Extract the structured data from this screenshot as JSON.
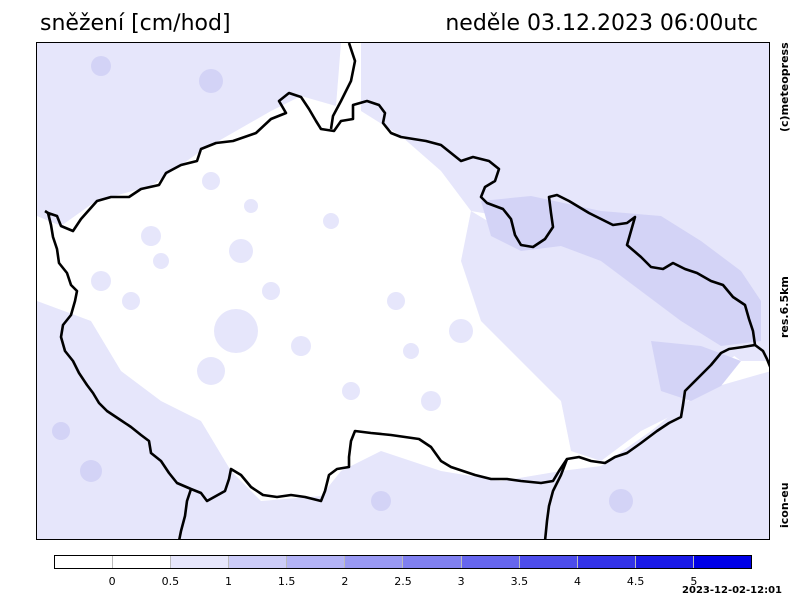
{
  "header": {
    "parameter": "sněžení [cm/hod]",
    "datetime": "neděle 03.12.2023 06:00utc"
  },
  "side_labels": {
    "copyright": "(c)meteopress",
    "resolution": "res.6.5km",
    "model": "icon-eu"
  },
  "legend": {
    "ticks": [
      "0",
      "0.5",
      "1",
      "1.5",
      "2",
      "2.5",
      "3",
      "3.5",
      "4",
      "4.5",
      "5"
    ],
    "colors": [
      "#ffffff",
      "#e6e6fb",
      "#ccccf8",
      "#b3b3f6",
      "#9999f3",
      "#8080f0",
      "#6666ee",
      "#4d4deb",
      "#3333e8",
      "#1a1ae6",
      "#0000e6"
    ]
  },
  "footer": {
    "timestamp": "2023-12-02-12:01"
  },
  "colors": {
    "snow_light": "#e6e6fb",
    "snow_medium": "#d9d9f7",
    "border": "#000000"
  }
}
